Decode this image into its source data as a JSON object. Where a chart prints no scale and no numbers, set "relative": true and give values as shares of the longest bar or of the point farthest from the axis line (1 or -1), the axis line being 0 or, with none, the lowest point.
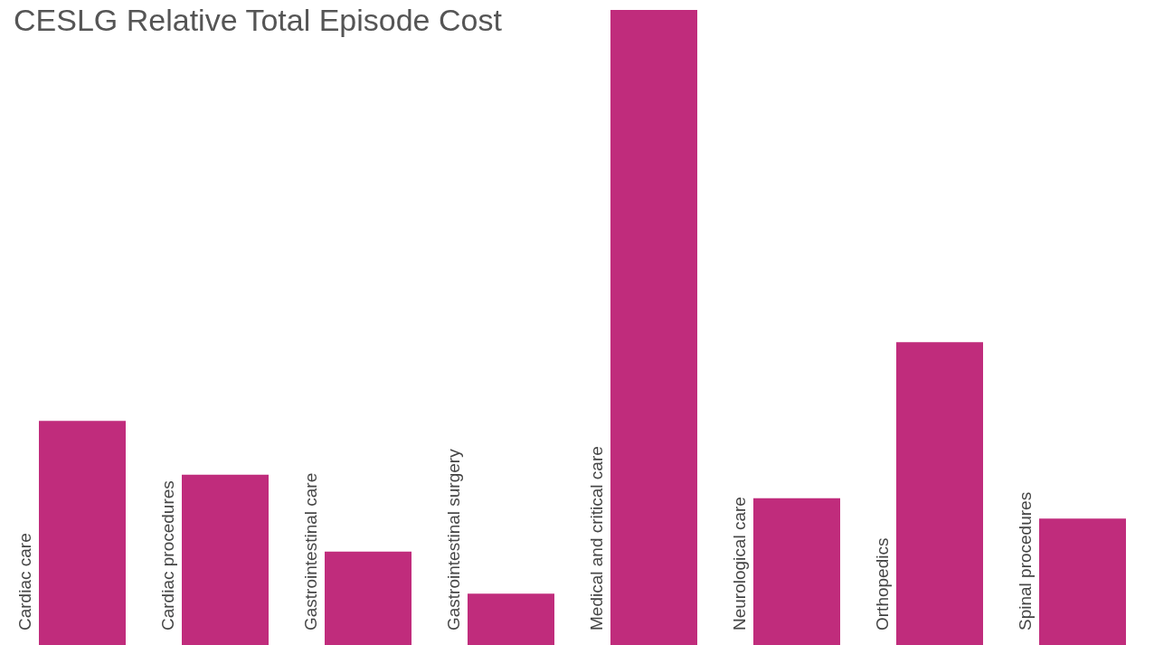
{
  "chart_data": {
    "type": "bar",
    "title": "CESLG Relative Total Episode Cost",
    "relative": true,
    "categories": [
      "Cardiac care",
      "Cardiac procedures",
      "Gastrointestinal care",
      "Gastrointestinal surgery",
      "Medical and critical care",
      "Neurological care",
      "Orthopedics",
      "Spinal procedures"
    ],
    "values": [
      0.353,
      0.268,
      0.147,
      0.081,
      1,
      0.231,
      0.477,
      0.199
    ],
    "color": "#c02c7c"
  }
}
